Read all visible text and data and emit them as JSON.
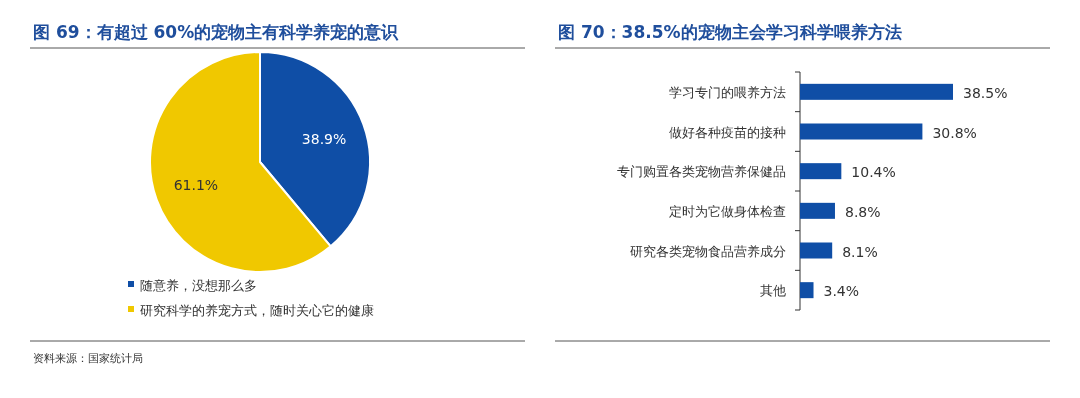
{
  "chart_data": [
    {
      "type": "pie",
      "title": "图 69：有超过 60%的宠物主有科学养宠的意识",
      "categories": [
        "随意养，没想那么多",
        "研究科学的养宠方式，随时关心它的健康"
      ],
      "values": [
        38.9,
        61.1
      ],
      "colors": [
        "#0f4ea6",
        "#f0c800"
      ],
      "value_labels": [
        "38.9%",
        "61.1%"
      ],
      "legend": "bottom left",
      "annotations": [
        "资料来源：国家统计局"
      ]
    },
    {
      "type": "bar",
      "orientation": "horizontal",
      "title": "图 70：38.5%的宠物主会学习科学喂养方法",
      "categories": [
        "学习专门的喂养方法",
        "做好各种疫苗的接种",
        "专门购置各类宠物营养保健品",
        "定时为它做身体检查",
        "研究各类宠物食品营养成分",
        "其他"
      ],
      "values": [
        38.5,
        30.8,
        10.4,
        8.8,
        8.1,
        3.4
      ],
      "color": "#0f4ea6",
      "value_labels": [
        "38.5%",
        "30.8%",
        "10.4%",
        "8.8%",
        "8.1%",
        "3.4%"
      ]
    }
  ]
}
